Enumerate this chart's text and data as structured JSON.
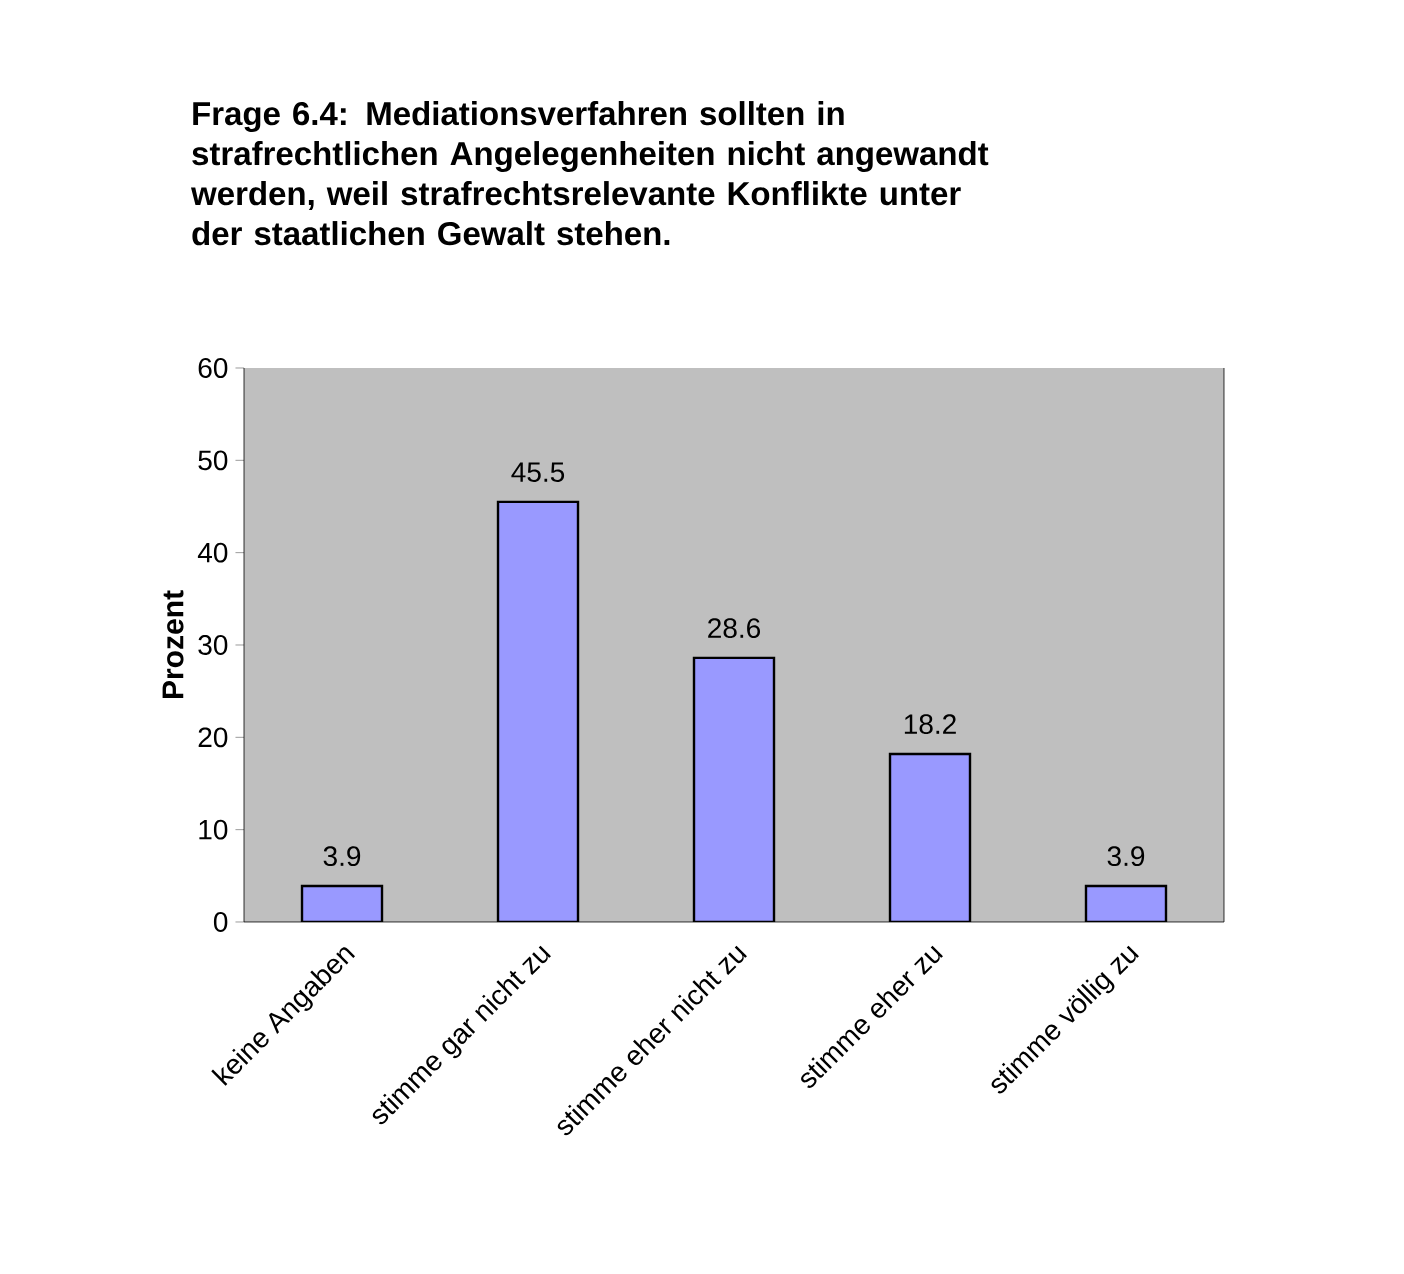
{
  "chart_data": {
    "type": "bar",
    "title": "Frage 6.4: Mediationsverfahren sollten in strafrechtlichen Angelegenheiten nicht angewandt werden, weil strafrechtsrelevante Konflikte unter der staatlichen Gewalt stehen.",
    "ylabel": "Prozent",
    "categories": [
      "keine Angaben",
      "stimme gar nicht zu",
      "stimme eher nicht zu",
      "stimme eher zu",
      "stimme völlig zu"
    ],
    "values": [
      3.9,
      45.5,
      28.6,
      18.2,
      3.9
    ],
    "color": "#9999ff",
    "ylim": [
      0,
      60
    ],
    "yticks": [
      0,
      10,
      20,
      30,
      40,
      50,
      60
    ],
    "data_labels": true,
    "grid": false
  }
}
